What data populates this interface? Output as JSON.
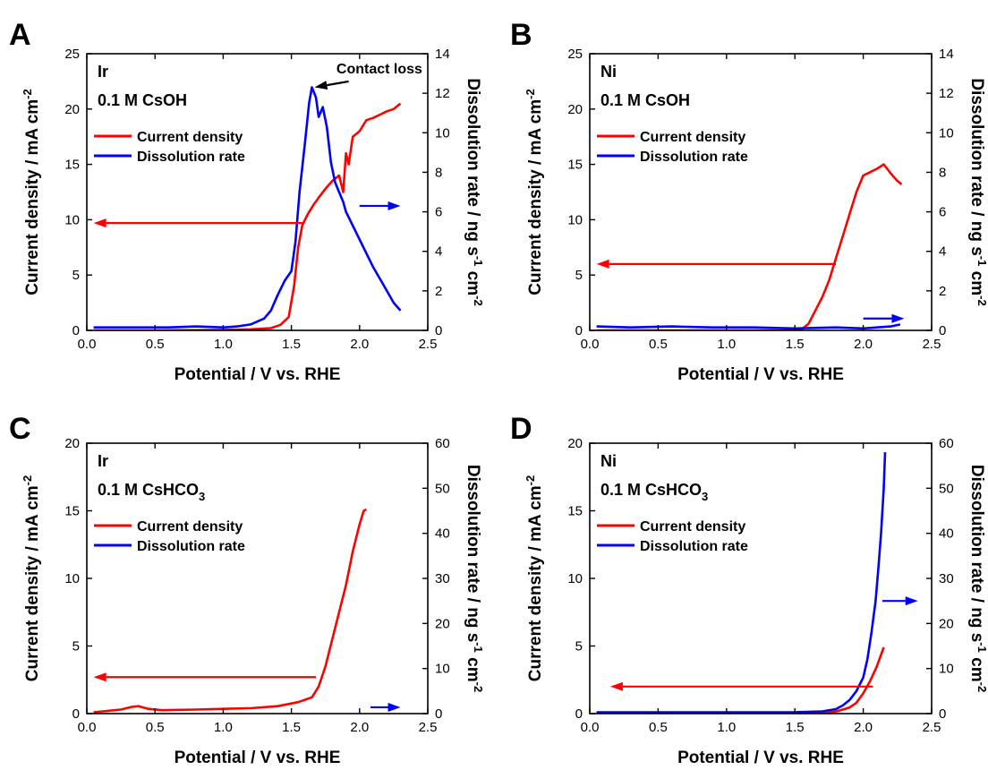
{
  "colors": {
    "current_density": "#ff0000",
    "dissolution_rate": "#0000ff",
    "axes": "#000000"
  },
  "chart_data": [
    {
      "panel": "A",
      "type": "line",
      "sample_label": "Ir",
      "electrolyte_label": "0.1 M CsOH",
      "electrolyte_label_main": "0.1 M CsOH",
      "electrolyte_label_sub": "",
      "annotation": "Contact loss",
      "xlabel": "Potential / V vs. RHE",
      "ylabel_left": "Current density / mA cm-2",
      "ylabel_right": "Dissolution rate / ng s-1 cm-2",
      "xlim": [
        0,
        2.5
      ],
      "ylim_left": [
        0,
        25
      ],
      "ylim_right": [
        0,
        14
      ],
      "xticks": [
        0.0,
        0.5,
        1.0,
        1.5,
        2.0,
        2.5
      ],
      "xtick_labels": [
        "0.0",
        "0.5",
        "1.0",
        "1.5",
        "2.0",
        "2.5"
      ],
      "yticks_left": [
        0,
        5,
        10,
        15,
        20,
        25
      ],
      "ytick_labels_left": [
        "0",
        "5",
        "10",
        "15",
        "20",
        "25"
      ],
      "yticks_right": [
        0,
        2,
        4,
        6,
        8,
        10,
        12,
        14
      ],
      "ytick_labels_right": [
        "0",
        "2",
        "4",
        "6",
        "8",
        "10",
        "12",
        "14"
      ],
      "legend": [
        "Current density",
        "Dissolution rate"
      ],
      "legend_position": "top-left",
      "arrows": [
        {
          "series": "Current density",
          "y_axis": "left",
          "from": [
            1.58,
            9.7
          ],
          "to": [
            0.05,
            9.7
          ]
        },
        {
          "series": "Dissolution rate",
          "y_axis": "right",
          "from": [
            2.0,
            6.3
          ],
          "to": [
            2.3,
            6.3
          ]
        },
        {
          "series": "annotation",
          "y_axis": "right",
          "from": [
            1.92,
            12.6
          ],
          "to": [
            1.67,
            12.3
          ]
        }
      ],
      "series": [
        {
          "name": "Current density",
          "axis": "left",
          "color_key": "current_density",
          "x": [
            0.05,
            0.5,
            1.0,
            1.2,
            1.35,
            1.42,
            1.48,
            1.52,
            1.55,
            1.58,
            1.62,
            1.66,
            1.7,
            1.75,
            1.8,
            1.85,
            1.88,
            1.9,
            1.92,
            1.95,
            2.0,
            2.05,
            2.1,
            2.15,
            2.2,
            2.25,
            2.3
          ],
          "y": [
            0.0,
            0.0,
            0.05,
            0.1,
            0.2,
            0.5,
            1.2,
            4.0,
            7.5,
            9.5,
            10.5,
            11.3,
            12.0,
            12.8,
            13.5,
            14.0,
            12.5,
            16.0,
            15.0,
            17.5,
            18.0,
            19.0,
            19.2,
            19.5,
            19.8,
            20.0,
            20.5
          ]
        },
        {
          "name": "Dissolution rate",
          "axis": "right",
          "color_key": "dissolution_rate",
          "x": [
            0.05,
            0.3,
            0.6,
            0.8,
            1.0,
            1.1,
            1.2,
            1.3,
            1.35,
            1.4,
            1.45,
            1.5,
            1.53,
            1.56,
            1.6,
            1.63,
            1.65,
            1.68,
            1.7,
            1.73,
            1.76,
            1.79,
            1.82,
            1.85,
            1.88,
            1.9,
            1.95,
            2.0,
            2.05,
            2.1,
            2.15,
            2.2,
            2.25,
            2.3
          ],
          "y": [
            0.15,
            0.15,
            0.15,
            0.2,
            0.15,
            0.2,
            0.3,
            0.6,
            1.0,
            1.8,
            2.5,
            3.0,
            4.5,
            7.0,
            9.5,
            11.5,
            12.3,
            11.8,
            10.8,
            11.3,
            10.3,
            8.5,
            7.5,
            7.0,
            6.5,
            6.0,
            5.3,
            4.6,
            3.9,
            3.2,
            2.6,
            2.0,
            1.4,
            1.0
          ]
        }
      ]
    },
    {
      "panel": "B",
      "type": "line",
      "sample_label": "Ni",
      "electrolyte_label": "0.1 M CsOH",
      "electrolyte_label_main": "0.1 M CsOH",
      "electrolyte_label_sub": "",
      "annotation": "",
      "xlabel": "Potential / V vs. RHE",
      "ylabel_left": "Current density / mA cm-2",
      "ylabel_right": "Dissolution rate / ng s-1 cm-2",
      "xlim": [
        0,
        2.5
      ],
      "ylim_left": [
        0,
        25
      ],
      "ylim_right": [
        0,
        14
      ],
      "xticks": [
        0.0,
        0.5,
        1.0,
        1.5,
        2.0,
        2.5
      ],
      "xtick_labels": [
        "0.0",
        "0.5",
        "1.0",
        "1.5",
        "2.0",
        "2.5"
      ],
      "yticks_left": [
        0,
        5,
        10,
        15,
        20,
        25
      ],
      "ytick_labels_left": [
        "0",
        "5",
        "10",
        "15",
        "20",
        "25"
      ],
      "yticks_right": [
        0,
        2,
        4,
        6,
        8,
        10,
        12,
        14
      ],
      "ytick_labels_right": [
        "0",
        "2",
        "4",
        "6",
        "8",
        "10",
        "12",
        "14"
      ],
      "legend": [
        "Current density",
        "Dissolution rate"
      ],
      "legend_position": "top-left",
      "arrows": [
        {
          "series": "Current density",
          "y_axis": "left",
          "from": [
            1.8,
            6.0
          ],
          "to": [
            0.05,
            6.0
          ]
        },
        {
          "series": "Dissolution rate",
          "y_axis": "right",
          "from": [
            2.0,
            0.6
          ],
          "to": [
            2.3,
            0.6
          ]
        }
      ],
      "series": [
        {
          "name": "Current density",
          "axis": "left",
          "color_key": "current_density",
          "x": [
            0.05,
            0.5,
            1.0,
            1.4,
            1.55,
            1.6,
            1.65,
            1.7,
            1.75,
            1.8,
            1.85,
            1.9,
            1.95,
            2.0,
            2.05,
            2.1,
            2.15,
            2.2,
            2.25,
            2.28
          ],
          "y": [
            0.0,
            0.0,
            0.0,
            0.0,
            0.1,
            0.6,
            1.8,
            3.0,
            4.5,
            6.5,
            8.5,
            10.5,
            12.5,
            14.0,
            14.3,
            14.6,
            15.0,
            14.2,
            13.5,
            13.2
          ]
        },
        {
          "name": "Dissolution rate",
          "axis": "right",
          "color_key": "dissolution_rate",
          "x": [
            0.05,
            0.3,
            0.6,
            0.9,
            1.2,
            1.5,
            1.8,
            2.0,
            2.1,
            2.2,
            2.27
          ],
          "y": [
            0.2,
            0.15,
            0.2,
            0.15,
            0.15,
            0.1,
            0.15,
            0.1,
            0.15,
            0.2,
            0.3
          ]
        }
      ]
    },
    {
      "panel": "C",
      "type": "line",
      "sample_label": "Ir",
      "electrolyte_label": "0.1 M CsHCO3",
      "electrolyte_label_main": "0.1 M CsHCO",
      "electrolyte_label_sub": "3",
      "annotation": "",
      "xlabel": "Potential / V vs. RHE",
      "ylabel_left": "Current density / mA cm-2",
      "ylabel_right": "Dissolution rate / ng s-1 cm-2",
      "xlim": [
        0,
        2.5
      ],
      "ylim_left": [
        0,
        20
      ],
      "ylim_right": [
        0,
        60
      ],
      "xticks": [
        0.0,
        0.5,
        1.0,
        1.5,
        2.0,
        2.5
      ],
      "xtick_labels": [
        "0.0",
        "0.5",
        "1.0",
        "1.5",
        "2.0",
        "2.5"
      ],
      "yticks_left": [
        0,
        5,
        10,
        15,
        20
      ],
      "ytick_labels_left": [
        "0",
        "5",
        "10",
        "15",
        "20"
      ],
      "yticks_right": [
        0,
        10,
        20,
        30,
        40,
        50,
        60
      ],
      "ytick_labels_right": [
        "0",
        "10",
        "20",
        "30",
        "40",
        "50",
        "60"
      ],
      "legend": [
        "Current density",
        "Dissolution rate"
      ],
      "legend_position": "top-left",
      "arrows": [
        {
          "series": "Current density",
          "y_axis": "left",
          "from": [
            1.68,
            2.7
          ],
          "to": [
            0.05,
            2.7
          ]
        },
        {
          "series": "Dissolution rate",
          "y_axis": "right",
          "from": [
            2.08,
            1.4
          ],
          "to": [
            2.3,
            1.4
          ]
        }
      ],
      "series": [
        {
          "name": "Current density",
          "axis": "left",
          "color_key": "current_density",
          "x": [
            0.05,
            0.15,
            0.25,
            0.33,
            0.38,
            0.45,
            0.55,
            0.8,
            1.0,
            1.2,
            1.4,
            1.55,
            1.65,
            1.7,
            1.75,
            1.8,
            1.85,
            1.9,
            1.95,
            2.0,
            2.03,
            2.05
          ],
          "y": [
            0.1,
            0.2,
            0.3,
            0.5,
            0.55,
            0.35,
            0.25,
            0.3,
            0.35,
            0.4,
            0.55,
            0.85,
            1.2,
            2.0,
            3.5,
            5.5,
            7.5,
            9.5,
            12.0,
            14.0,
            15.0,
            15.1
          ]
        }
      ]
    },
    {
      "panel": "D",
      "type": "line",
      "sample_label": "Ni",
      "electrolyte_label": "0.1 M CsHCO3",
      "electrolyte_label_main": "0.1 M CsHCO",
      "electrolyte_label_sub": "3",
      "annotation": "",
      "xlabel": "Potential / V vs. RHE",
      "ylabel_left": "Current density / mA cm-2",
      "ylabel_right": "Dissolution rate / ng s-1 cm-2",
      "xlim": [
        0,
        2.5
      ],
      "ylim_left": [
        0,
        20
      ],
      "ylim_right": [
        0,
        60
      ],
      "xticks": [
        0.0,
        0.5,
        1.0,
        1.5,
        2.0,
        2.5
      ],
      "xtick_labels": [
        "0.0",
        "0.5",
        "1.0",
        "1.5",
        "2.0",
        "2.5"
      ],
      "yticks_left": [
        0,
        5,
        10,
        15,
        20
      ],
      "ytick_labels_left": [
        "0",
        "5",
        "10",
        "15",
        "20"
      ],
      "yticks_right": [
        0,
        10,
        20,
        30,
        40,
        50,
        60
      ],
      "ytick_labels_right": [
        "0",
        "10",
        "20",
        "30",
        "40",
        "50",
        "60"
      ],
      "legend": [
        "Current density",
        "Dissolution rate"
      ],
      "legend_position": "top-left",
      "arrows": [
        {
          "series": "Current density",
          "y_axis": "left",
          "from": [
            2.07,
            2.0
          ],
          "to": [
            0.15,
            2.0
          ]
        },
        {
          "series": "Dissolution rate",
          "y_axis": "right",
          "from": [
            2.14,
            25.0
          ],
          "to": [
            2.4,
            25.0
          ]
        }
      ],
      "series": [
        {
          "name": "Current density",
          "axis": "left",
          "color_key": "current_density",
          "x": [
            0.05,
            0.5,
            1.0,
            1.5,
            1.7,
            1.8,
            1.9,
            1.95,
            2.0,
            2.05,
            2.1,
            2.15
          ],
          "y": [
            0.0,
            0.0,
            0.0,
            0.0,
            0.05,
            0.15,
            0.45,
            0.8,
            1.5,
            2.4,
            3.5,
            4.9
          ]
        },
        {
          "name": "Dissolution rate",
          "axis": "right",
          "color_key": "dissolution_rate",
          "x": [
            0.05,
            0.5,
            1.0,
            1.5,
            1.7,
            1.8,
            1.85,
            1.9,
            1.95,
            2.0,
            2.03,
            2.06,
            2.09,
            2.11,
            2.13,
            2.15,
            2.16
          ],
          "y": [
            0.3,
            0.3,
            0.3,
            0.3,
            0.5,
            1.0,
            1.8,
            3.0,
            5.0,
            8.0,
            12.0,
            18.0,
            25.0,
            32.0,
            40.0,
            50.0,
            58.0
          ]
        }
      ]
    }
  ]
}
